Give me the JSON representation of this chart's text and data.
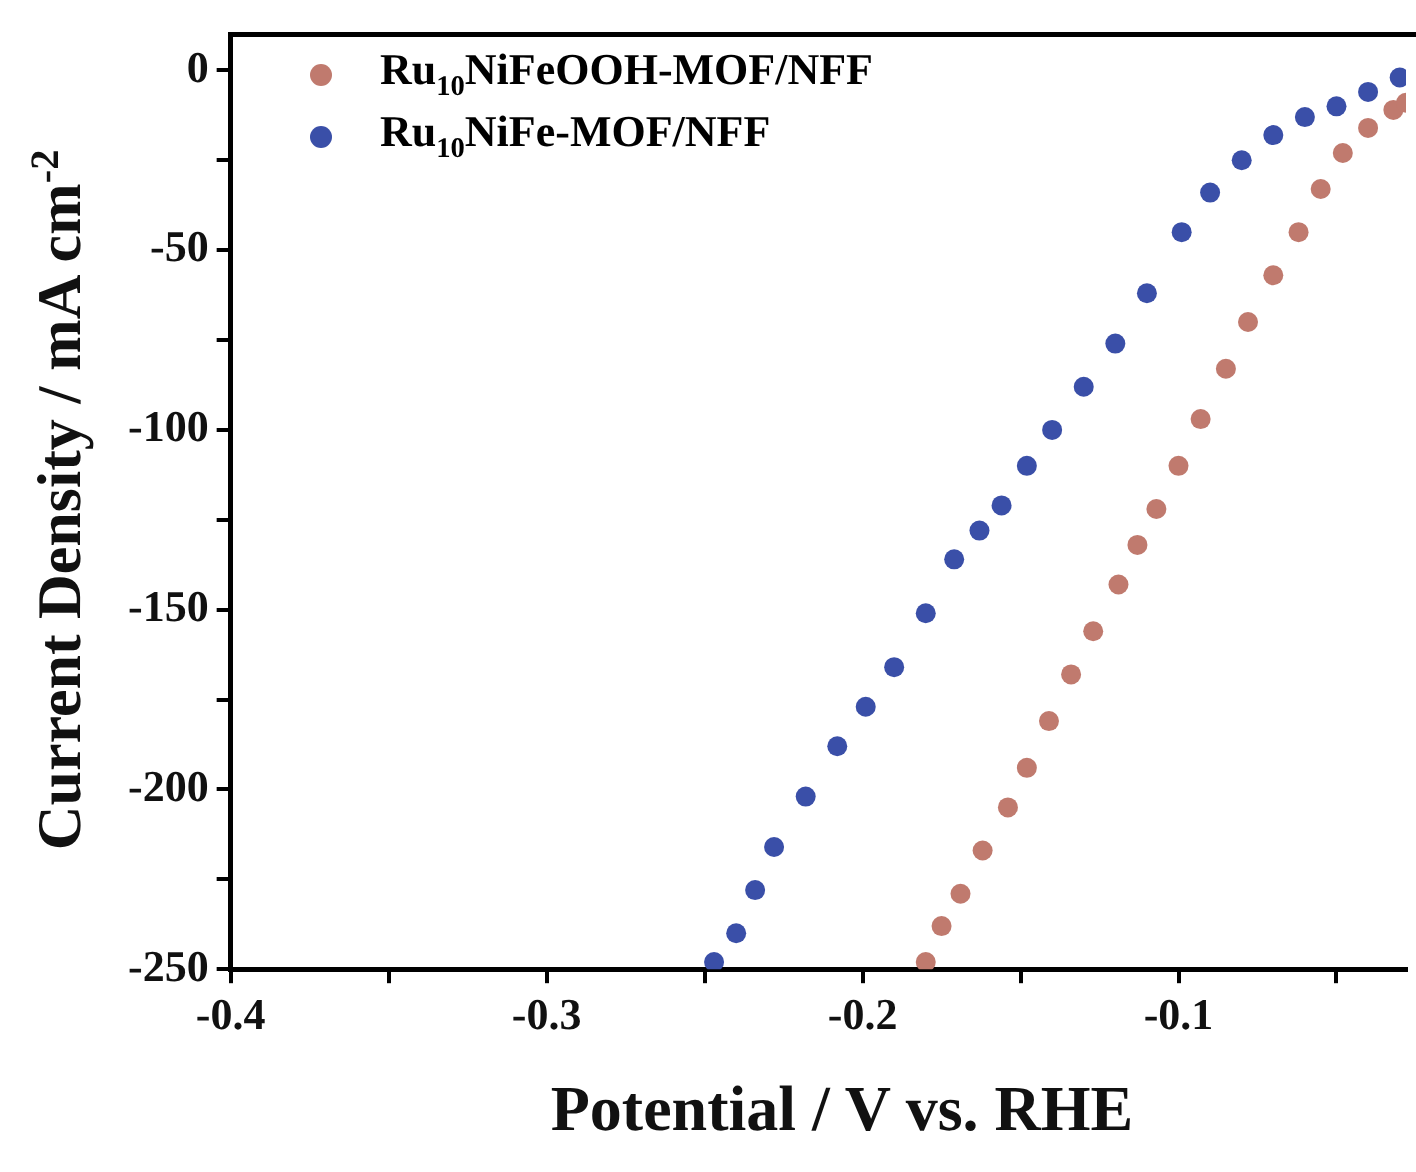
{
  "chart_data": {
    "type": "scatter",
    "xlabel": "Potential / V vs. RHE",
    "ylabel": "Current Density / mA cm$^{-2}$",
    "xlim": [
      -0.4,
      -0.028
    ],
    "ylim": [
      -250,
      10
    ],
    "xticks": [
      -0.4,
      {
        "value": -0.35,
        "label": null
      },
      -0.3,
      {
        "value": -0.25,
        "label": null
      },
      -0.2,
      {
        "value": -0.15,
        "label": null
      },
      -0.1,
      {
        "value": -0.05,
        "label": null
      }
    ],
    "yticks": [
      -250,
      {
        "value": -225,
        "label": null
      },
      -200,
      {
        "value": -175,
        "label": null
      },
      -150,
      {
        "value": -125,
        "label": null
      },
      -100,
      {
        "value": -75,
        "label": null
      },
      -50,
      {
        "value": -25,
        "label": null
      },
      0
    ],
    "legend": "top left",
    "marker": "circle",
    "grid": false,
    "series": [
      {
        "name": "Ru$_{10}$NiFeOOH-MOF/NFF",
        "color": "#c07a6e",
        "x": [
          -0.18,
          -0.175,
          -0.169,
          -0.162,
          -0.154,
          -0.148,
          -0.141,
          -0.134,
          -0.127,
          -0.119,
          -0.113,
          -0.107,
          -0.1,
          -0.093,
          -0.085,
          -0.078,
          -0.07,
          -0.062,
          -0.055,
          -0.048,
          -0.04,
          -0.032,
          -0.028
        ],
        "values": [
          -248,
          -238,
          -229,
          -217,
          -205,
          -194,
          -181,
          -168,
          -156,
          -143,
          -132,
          -122,
          -110,
          -97,
          -83,
          -70,
          -57,
          -45,
          -33,
          -23,
          -16,
          -11,
          -9
        ]
      },
      {
        "name": "Ru$_{10}$NiFe-MOF/NFF",
        "color": "#3a4fa8",
        "x": [
          -0.247,
          -0.24,
          -0.234,
          -0.228,
          -0.218,
          -0.208,
          -0.199,
          -0.19,
          -0.18,
          -0.171,
          -0.163,
          -0.156,
          -0.148,
          -0.14,
          -0.13,
          -0.12,
          -0.11,
          -0.099,
          -0.09,
          -0.08,
          -0.07,
          -0.06,
          -0.05,
          -0.04,
          -0.03
        ],
        "values": [
          -248,
          -240,
          -228,
          -216,
          -202,
          -188,
          -177,
          -166,
          -151,
          -136,
          -128,
          -121,
          -110,
          -100,
          -88,
          -76,
          -62,
          -45,
          -34,
          -25,
          -18,
          -13,
          -10,
          -6,
          -2
        ]
      }
    ]
  }
}
